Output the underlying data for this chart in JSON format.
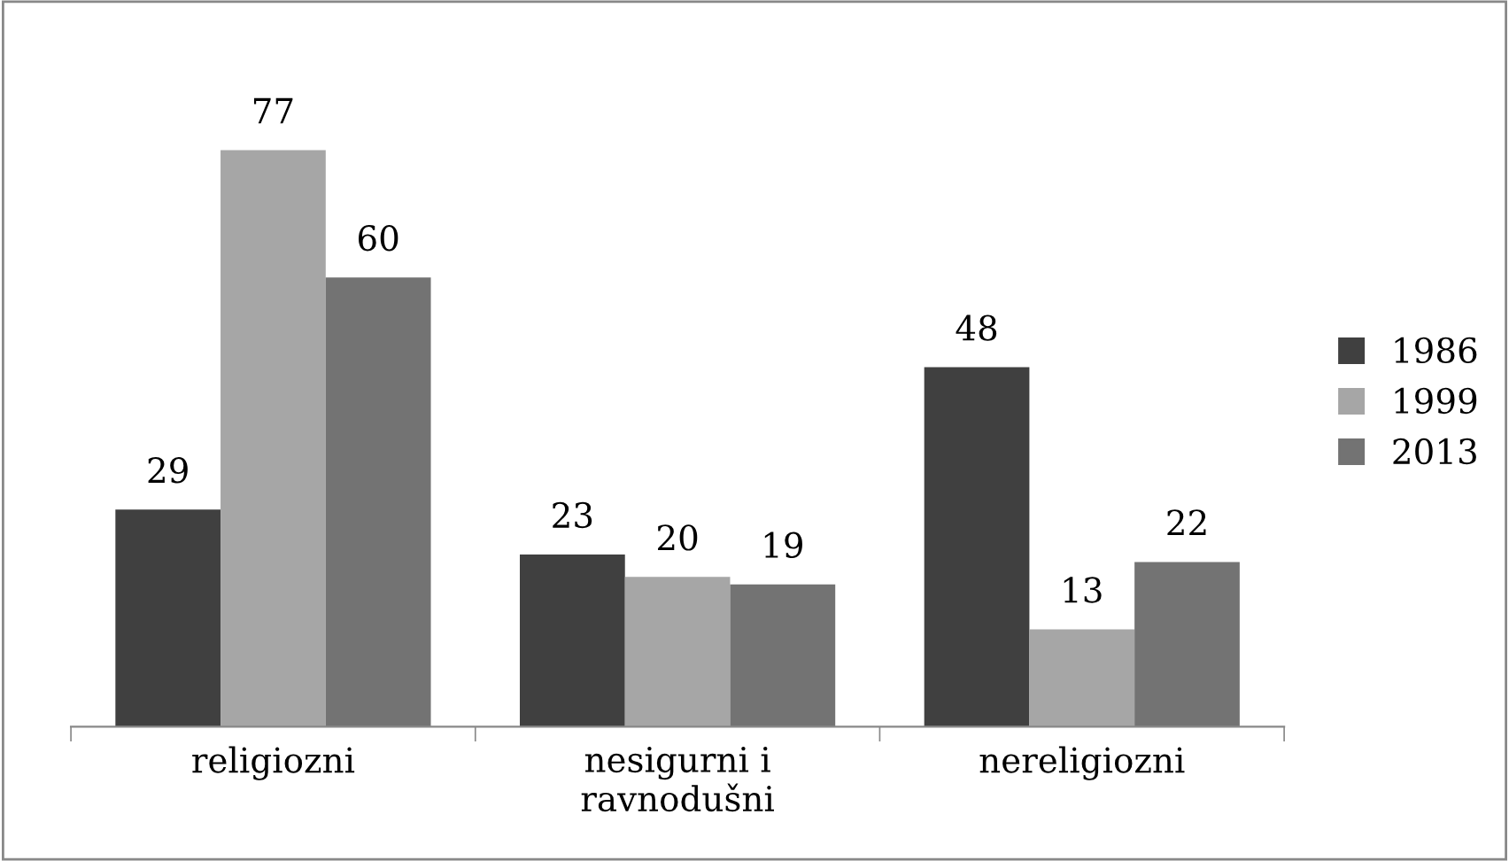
{
  "chart_data": {
    "type": "bar",
    "categories": [
      "religiozni",
      "nesigurni i\nravnodušni",
      "nereligiozni"
    ],
    "series": [
      {
        "name": "1986",
        "color": "#404040",
        "values": [
          29,
          23,
          48
        ]
      },
      {
        "name": "1999",
        "color": "#a6a6a6",
        "values": [
          77,
          20,
          13
        ]
      },
      {
        "name": "2013",
        "color": "#737373",
        "values": [
          60,
          19,
          22
        ]
      }
    ],
    "data_labels": true,
    "legend": "right"
  }
}
